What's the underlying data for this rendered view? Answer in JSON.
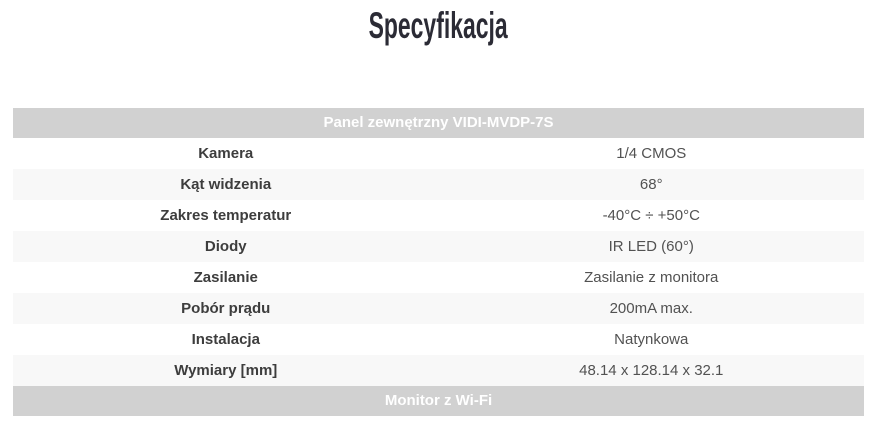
{
  "page": {
    "title": "Specyfikacja"
  },
  "spec_table": {
    "section1_header": "Panel zewnętrzny VIDI-MVDP-7S",
    "rows": [
      {
        "label": "Kamera",
        "value": "1/4 CMOS"
      },
      {
        "label": "Kąt widzenia",
        "value": "68°"
      },
      {
        "label": "Zakres temperatur",
        "value": "-40°C ÷ +50°C"
      },
      {
        "label": "Diody",
        "value": "IR LED (60°)"
      },
      {
        "label": "Zasilanie",
        "value": "Zasilanie z monitora"
      },
      {
        "label": "Pobór prądu",
        "value": "200mA max."
      },
      {
        "label": "Instalacja",
        "value": "Natynkowa"
      },
      {
        "label": "Wymiary [mm]",
        "value": "48.14 x 128.14 x 32.1"
      }
    ],
    "section2_header": "Monitor z Wi-Fi"
  },
  "colors": {
    "section_header_bg": "#d1d1d1",
    "section_header_text": "#ffffff",
    "stripe_bg": "#f8f8f8",
    "label_text": "#3d3d3d",
    "value_text": "#525252",
    "title_text": "#2b2b35",
    "page_bg": "#ffffff"
  }
}
